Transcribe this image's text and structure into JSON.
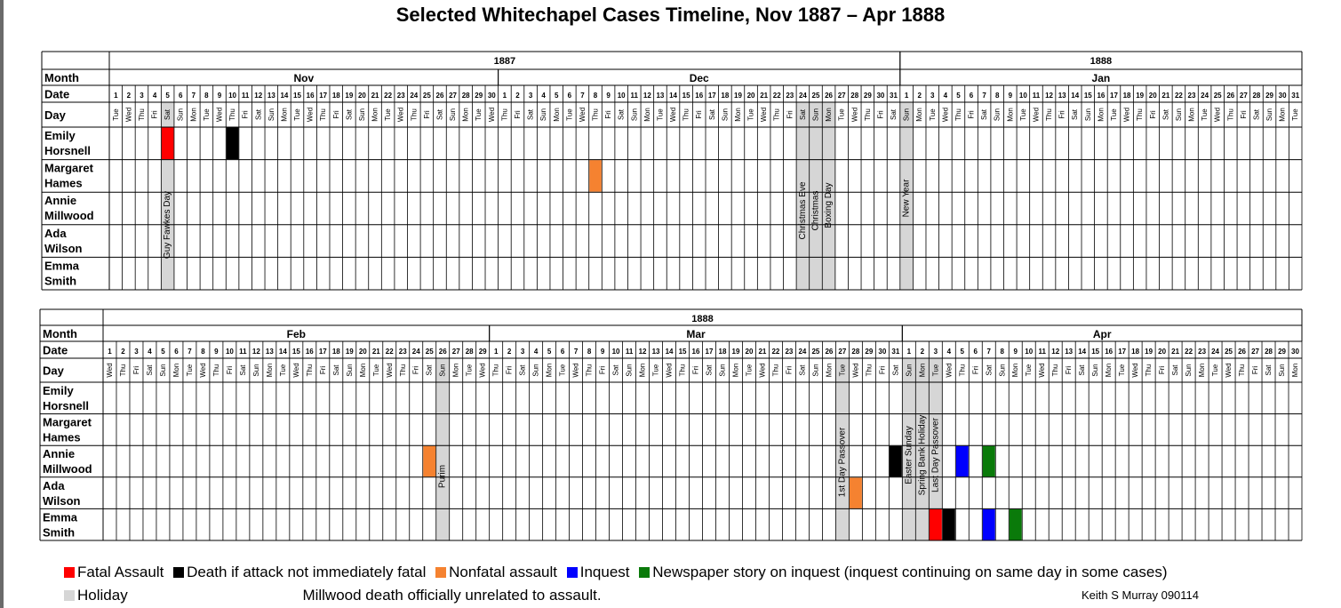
{
  "title": "Selected Whitechapel Cases Timeline, Nov 1887 – Apr 1888",
  "labels": {
    "month": "Month",
    "date": "Date",
    "day": "Day"
  },
  "colors": {
    "fatal": "#ff0000",
    "death": "#000000",
    "nonfatal": "#f58230",
    "inquest": "#0000ff",
    "newspaper": "#0a7a0a",
    "holiday": "#d6d6d6",
    "grid": "#000000"
  },
  "legend": [
    {
      "key": "fatal",
      "label": "Fatal Assault"
    },
    {
      "key": "death",
      "label": "Death if attack not immediately fatal"
    },
    {
      "key": "nonfatal",
      "label": "Nonfatal assault"
    },
    {
      "key": "inquest",
      "label": "Inquest"
    },
    {
      "key": "newspaper",
      "label": "Newspaper story on inquest (inquest continuing on same day in some cases)"
    },
    {
      "key": "holiday",
      "label": "Holiday"
    }
  ],
  "note": "Millwood death officially unrelated to assault.",
  "credit": "Keith S Murray 090114",
  "chart_data": [
    {
      "type": "table",
      "panel": "top",
      "start_date": "1887-11-01",
      "years": [
        {
          "label": "1887",
          "span": [
            "1887-11-01",
            "1887-12-31"
          ]
        },
        {
          "label": "1888",
          "span": [
            "1888-01-01",
            "1888-01-31"
          ]
        }
      ],
      "months": [
        {
          "label": "Nov",
          "start": "1887-11-01",
          "end": "1887-11-30"
        },
        {
          "label": "Dec",
          "start": "1887-12-01",
          "end": "1887-12-31"
        },
        {
          "label": "Jan",
          "start": "1888-01-01",
          "end": "1888-01-31"
        }
      ],
      "rows": [
        {
          "lines": [
            "Emily",
            "Horsnell"
          ],
          "events": [
            {
              "date": "1887-11-05",
              "type": "fatal"
            },
            {
              "date": "1887-11-10",
              "type": "death"
            }
          ]
        },
        {
          "lines": [
            "Margaret",
            "Hames"
          ],
          "events": [
            {
              "date": "1887-12-08",
              "type": "nonfatal"
            }
          ]
        },
        {
          "lines": [
            "Annie",
            "Millwood"
          ],
          "events": []
        },
        {
          "lines": [
            "Ada",
            "Wilson"
          ],
          "events": []
        },
        {
          "lines": [
            "Emma",
            "Smith"
          ],
          "events": []
        }
      ],
      "holidays": [
        {
          "date": "1887-11-05",
          "label": "Guy Fawkes Day"
        },
        {
          "date": "1887-12-24",
          "label": "Christmas Eve"
        },
        {
          "date": "1887-12-25",
          "label": "Christmas"
        },
        {
          "date": "1887-12-26",
          "label": "Boxing Day"
        },
        {
          "date": "1888-01-01",
          "label": "New Year"
        }
      ]
    },
    {
      "type": "table",
      "panel": "bottom",
      "start_date": "1888-02-01",
      "years": [
        {
          "label": "1888",
          "span": [
            "1888-02-01",
            "1888-04-30"
          ]
        }
      ],
      "months": [
        {
          "label": "Feb",
          "start": "1888-02-01",
          "end": "1888-02-29"
        },
        {
          "label": "Mar",
          "start": "1888-03-01",
          "end": "1888-03-31"
        },
        {
          "label": "Apr",
          "start": "1888-04-01",
          "end": "1888-04-30"
        }
      ],
      "rows": [
        {
          "lines": [
            "Emily",
            "Horsnell"
          ],
          "events": []
        },
        {
          "lines": [
            "Margaret",
            "Hames"
          ],
          "events": []
        },
        {
          "lines": [
            "Annie",
            "Millwood"
          ],
          "events": [
            {
              "date": "1888-02-25",
              "type": "nonfatal"
            },
            {
              "date": "1888-03-31",
              "type": "death"
            },
            {
              "date": "1888-04-05",
              "type": "inquest"
            },
            {
              "date": "1888-04-07",
              "type": "newspaper"
            }
          ]
        },
        {
          "lines": [
            "Ada",
            "Wilson"
          ],
          "events": [
            {
              "date": "1888-03-28",
              "type": "nonfatal"
            }
          ]
        },
        {
          "lines": [
            "Emma",
            "Smith"
          ],
          "events": [
            {
              "date": "1888-04-03",
              "type": "fatal"
            },
            {
              "date": "1888-04-04",
              "type": "death"
            },
            {
              "date": "1888-04-07",
              "type": "inquest"
            },
            {
              "date": "1888-04-09",
              "type": "newspaper"
            }
          ]
        }
      ],
      "holidays": [
        {
          "date": "1888-02-26",
          "label": "Purim"
        },
        {
          "date": "1888-03-27",
          "label": "1st Day Passover"
        },
        {
          "date": "1888-04-01",
          "label": "Easter Sunday"
        },
        {
          "date": "1888-04-02",
          "label": "Spring Bank Holiday"
        },
        {
          "date": "1888-04-03",
          "label": "Last Day Passover"
        }
      ]
    }
  ]
}
